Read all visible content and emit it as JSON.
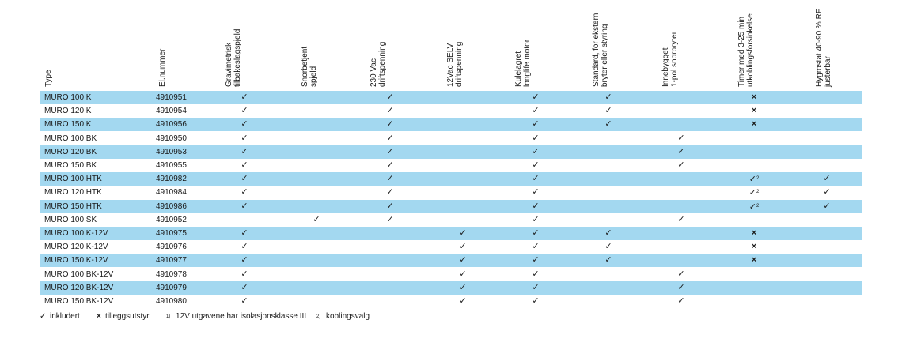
{
  "headers": [
    {
      "key": "type",
      "lines": [
        "Type"
      ]
    },
    {
      "key": "el",
      "lines": [
        "El.nummer"
      ]
    },
    {
      "key": "grav",
      "lines": [
        "Gravimetrisk",
        "tilbakeslagspjeld"
      ]
    },
    {
      "key": "snor",
      "lines": [
        "Snorbetjent",
        "spjeld"
      ]
    },
    {
      "key": "v230",
      "lines": [
        "230 Vac",
        "driftspenning"
      ]
    },
    {
      "key": "v12",
      "lines": [
        "12Vac SELV",
        "driftspenning"
      ]
    },
    {
      "key": "kule",
      "lines": [
        "Kulelagret",
        "longlife motor"
      ]
    },
    {
      "key": "std",
      "lines": [
        "Standard, for ekstern",
        "bryter eller styring"
      ]
    },
    {
      "key": "inne",
      "lines": [
        "Innebygget",
        "1-pol snorbryter"
      ]
    },
    {
      "key": "timer",
      "lines": [
        "Timer med 3-25 min",
        "utkoblingsforsinkelse"
      ]
    },
    {
      "key": "hygro",
      "lines": [
        "Hygrostat 40-90 % RF",
        "justerbar"
      ]
    }
  ],
  "rows": [
    {
      "type": "MURO 100 K",
      "el": "4910951",
      "grav": "✓",
      "snor": "",
      "v230": "✓",
      "v12": "",
      "kule": "✓",
      "std": "✓",
      "inne": "",
      "timer": "×",
      "hygro": ""
    },
    {
      "type": "MURO 120 K",
      "el": "4910954",
      "grav": "✓",
      "snor": "",
      "v230": "✓",
      "v12": "",
      "kule": "✓",
      "std": "✓",
      "inne": "",
      "timer": "×",
      "hygro": ""
    },
    {
      "type": "MURO 150 K",
      "el": "4910956",
      "grav": "✓",
      "snor": "",
      "v230": "✓",
      "v12": "",
      "kule": "✓",
      "std": "✓",
      "inne": "",
      "timer": "×",
      "hygro": ""
    },
    {
      "type": "MURO 100 BK",
      "el": "4910950",
      "grav": "✓",
      "snor": "",
      "v230": "✓",
      "v12": "",
      "kule": "✓",
      "std": "",
      "inne": "✓",
      "timer": "",
      "hygro": ""
    },
    {
      "type": "MURO 120 BK",
      "el": "4910953",
      "grav": "✓",
      "snor": "",
      "v230": "✓",
      "v12": "",
      "kule": "✓",
      "std": "",
      "inne": "✓",
      "timer": "",
      "hygro": ""
    },
    {
      "type": "MURO 150 BK",
      "el": "4910955",
      "grav": "✓",
      "snor": "",
      "v230": "✓",
      "v12": "",
      "kule": "✓",
      "std": "",
      "inne": "✓",
      "timer": "",
      "hygro": ""
    },
    {
      "type": "MURO 100 HTK",
      "el": "4910982",
      "grav": "✓",
      "snor": "",
      "v230": "✓",
      "v12": "",
      "kule": "✓",
      "std": "",
      "inne": "",
      "timer": "✓2",
      "hygro": "✓"
    },
    {
      "type": "MURO 120 HTK",
      "el": "4910984",
      "grav": "✓",
      "snor": "",
      "v230": "✓",
      "v12": "",
      "kule": "✓",
      "std": "",
      "inne": "",
      "timer": "✓2",
      "hygro": "✓"
    },
    {
      "type": "MURO 150 HTK",
      "el": "4910986",
      "grav": "✓",
      "snor": "",
      "v230": "✓",
      "v12": "",
      "kule": "✓",
      "std": "",
      "inne": "",
      "timer": "✓2",
      "hygro": "✓"
    },
    {
      "type": "MURO 100 SK",
      "el": "4910952",
      "grav": "",
      "snor": "✓",
      "v230": "✓",
      "v12": "",
      "kule": "✓",
      "std": "",
      "inne": "✓",
      "timer": "",
      "hygro": ""
    },
    {
      "type": "MURO 100 K-12V",
      "el": "4910975",
      "grav": "✓",
      "snor": "",
      "v230": "",
      "v12": "✓",
      "kule": "✓",
      "std": "✓",
      "inne": "",
      "timer": "×",
      "hygro": ""
    },
    {
      "type": "MURO 120 K-12V",
      "el": "4910976",
      "grav": "✓",
      "snor": "",
      "v230": "",
      "v12": "✓",
      "kule": "✓",
      "std": "✓",
      "inne": "",
      "timer": "×",
      "hygro": ""
    },
    {
      "type": "MURO 150 K-12V",
      "el": "4910977",
      "grav": "✓",
      "snor": "",
      "v230": "",
      "v12": "✓",
      "kule": "✓",
      "std": "✓",
      "inne": "",
      "timer": "×",
      "hygro": ""
    },
    {
      "type": "MURO 100 BK-12V",
      "el": "4910978",
      "grav": "✓",
      "snor": "",
      "v230": "",
      "v12": "✓",
      "kule": "✓",
      "std": "",
      "inne": "✓",
      "timer": "",
      "hygro": ""
    },
    {
      "type": "MURO 120 BK-12V",
      "el": "4910979",
      "grav": "✓",
      "snor": "",
      "v230": "",
      "v12": "✓",
      "kule": "✓",
      "std": "",
      "inne": "✓",
      "timer": "",
      "hygro": ""
    },
    {
      "type": "MURO 150 BK-12V",
      "el": "4910980",
      "grav": "✓",
      "snor": "",
      "v230": "",
      "v12": "✓",
      "kule": "✓",
      "std": "",
      "inne": "✓",
      "timer": "",
      "hygro": ""
    }
  ],
  "legend": {
    "check_symbol": "✓",
    "check_label": "inkludert",
    "cross_symbol": "×",
    "cross_label": "tilleggsutstyr",
    "note1_marker": "1)",
    "note1_text": "12V utgavene har isolasjonsklasse III",
    "note2_marker": "2)",
    "note2_text": "koblingsvalg"
  },
  "colors": {
    "band": "#a3d8f0",
    "text": "#1a1a1a"
  }
}
